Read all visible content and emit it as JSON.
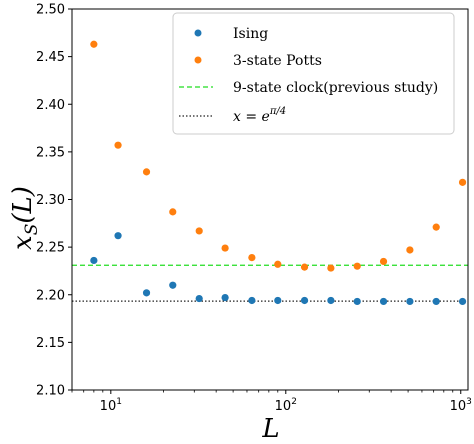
{
  "chart_data": {
    "type": "scatter",
    "title": "",
    "xlabel": "L",
    "ylabel_main": "x",
    "ylabel_sub": "S",
    "ylabel_arg": "(L)",
    "xscale": "log",
    "xlim": [
      6,
      1100
    ],
    "ylim": [
      2.1,
      2.5
    ],
    "yticks": [
      "2.10",
      "2.15",
      "2.20",
      "2.25",
      "2.30",
      "2.35",
      "2.40",
      "2.45",
      "2.50"
    ],
    "xticks": [
      {
        "value": 10,
        "base": "10",
        "exp": "1"
      },
      {
        "value": 100,
        "base": "10",
        "exp": "2"
      },
      {
        "value": 1000,
        "base": "10",
        "exp": "3"
      }
    ],
    "grid": false,
    "legend_position": "top-right",
    "series": [
      {
        "name": "Ising",
        "kind": "points",
        "color": "#1f77b4",
        "x": [
          8,
          11,
          16,
          22.6,
          32,
          45,
          64,
          90,
          128,
          181,
          256,
          362,
          512,
          724,
          1024
        ],
        "y": [
          2.236,
          2.262,
          2.202,
          2.21,
          2.196,
          2.197,
          2.194,
          2.194,
          2.194,
          2.194,
          2.193,
          2.193,
          2.193,
          2.193,
          2.193
        ]
      },
      {
        "name": "3-state Potts",
        "kind": "points",
        "color": "#ff7f0e",
        "x": [
          8,
          11,
          16,
          22.6,
          32,
          45,
          64,
          90,
          128,
          181,
          256,
          362,
          512,
          724,
          1024
        ],
        "y": [
          2.463,
          2.357,
          2.329,
          2.287,
          2.267,
          2.249,
          2.239,
          2.232,
          2.229,
          2.228,
          2.23,
          2.235,
          2.247,
          2.271,
          2.318
        ]
      },
      {
        "name": "9-state clock(previous study)",
        "kind": "hline",
        "color": "#22dd22",
        "style": "dashed",
        "y": 2.231
      },
      {
        "name_prefix": "x = e",
        "name_sup": "π/4",
        "kind": "hline",
        "color": "#222222",
        "style": "dotted",
        "y": 2.1933
      }
    ]
  }
}
